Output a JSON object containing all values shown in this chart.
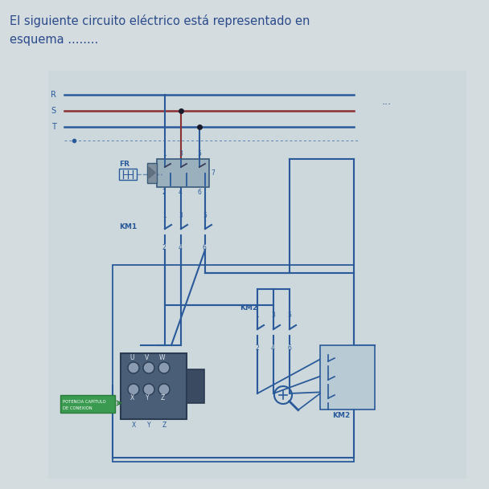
{
  "title_line1": "El siguiente circuito eléctrico está representado en",
  "title_line2": "esquema ........",
  "bg_color": "#d4dce0",
  "line_color": "#2a5a9a",
  "red_line_color": "#8b3030",
  "title_color": "#2a4a8a",
  "circuit_bg": "#ccd8dc",
  "label_R": "R",
  "label_S": "S",
  "label_T": "T",
  "label_FR": "FR",
  "label_KM1": "KM1",
  "label_KM2": "KM2",
  "label_U": "U",
  "label_V": "V",
  "label_W": "W",
  "label_dots": "...",
  "motor_color": "#5a6a80",
  "motor_side_color": "#4a5a70",
  "green_bg": "#3a9a50"
}
